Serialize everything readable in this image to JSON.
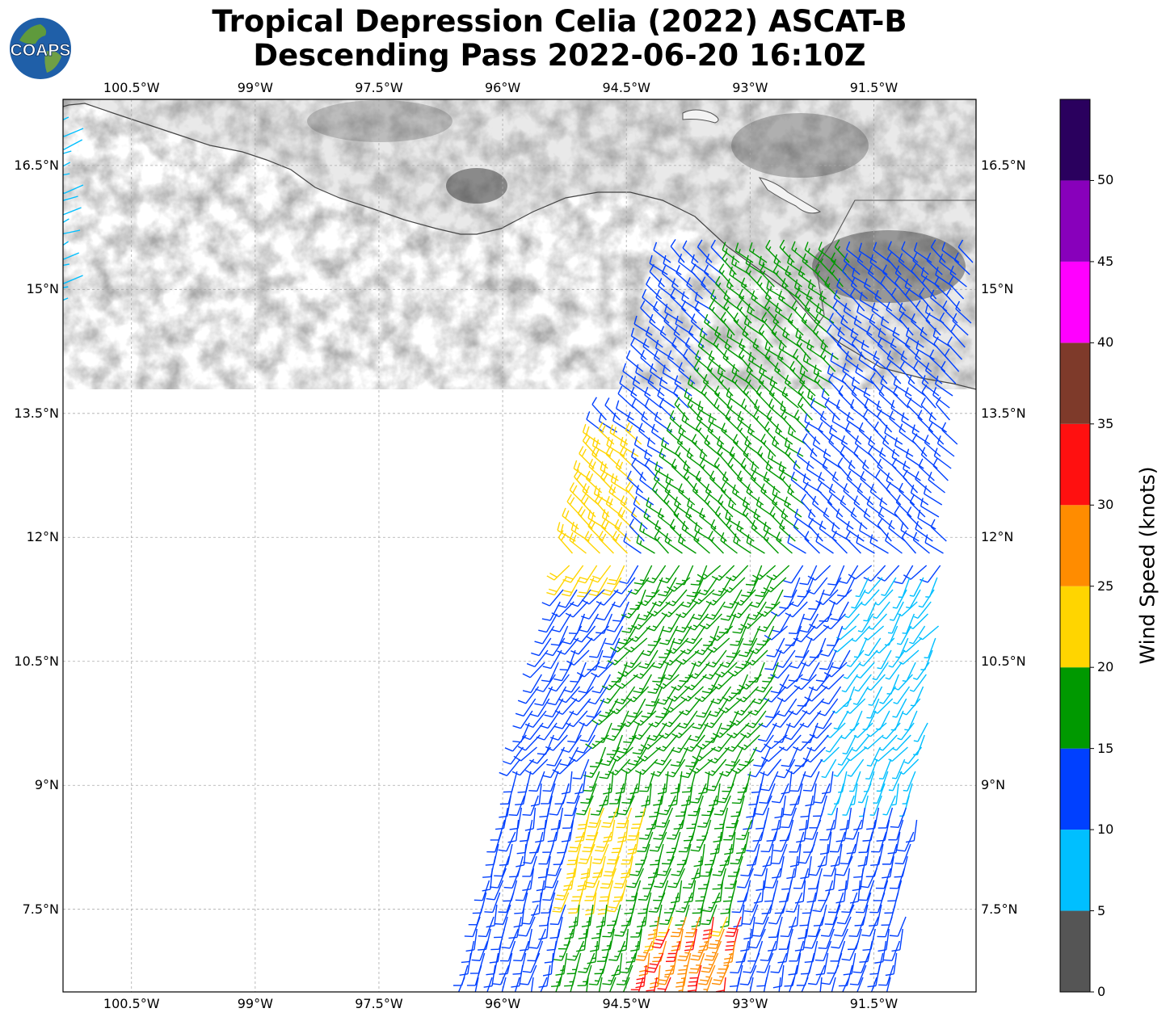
{
  "header": {
    "title_line1": "Tropical Depression Celia (2022) ASCAT-B",
    "title_line2": "Descending Pass 2022-06-20 16:10Z",
    "logo_text": "COAPS"
  },
  "map": {
    "lon_labels": [
      "100.5°W",
      "99°W",
      "97.5°W",
      "96°W",
      "94.5°W",
      "93°W",
      "91.5°W"
    ],
    "lat_labels": [
      "16.5°N",
      "15°N",
      "13.5°N",
      "12°N",
      "10.5°N",
      "9°N",
      "7.5°N"
    ],
    "extent": {
      "lon_min": -101.33,
      "lon_max": -90.26,
      "lat_min": 6.5,
      "lat_max": 17.3
    },
    "gridlines": true,
    "land_shading": "grayscale terrain"
  },
  "colorbar": {
    "title": "Wind Speed (knots)",
    "tick_labels": [
      "0",
      "5",
      "10",
      "15",
      "20",
      "25",
      "30",
      "35",
      "40",
      "45",
      "50"
    ],
    "bins": [
      {
        "from": 0,
        "to": 5,
        "color": "#555555"
      },
      {
        "from": 5,
        "to": 10,
        "color": "#00bfff"
      },
      {
        "from": 10,
        "to": 15,
        "color": "#0040ff"
      },
      {
        "from": 15,
        "to": 20,
        "color": "#009900"
      },
      {
        "from": 20,
        "to": 25,
        "color": "#ffd500"
      },
      {
        "from": 25,
        "to": 30,
        "color": "#ff8c00"
      },
      {
        "from": 30,
        "to": 35,
        "color": "#ff1010"
      },
      {
        "from": 35,
        "to": 40,
        "color": "#7e3a2a"
      },
      {
        "from": 40,
        "to": 45,
        "color": "#ff00ff"
      },
      {
        "from": 45,
        "to": 50,
        "color": "#8800bb"
      },
      {
        "from": 50,
        "to": 55,
        "color": "#2a005e"
      }
    ]
  }
}
